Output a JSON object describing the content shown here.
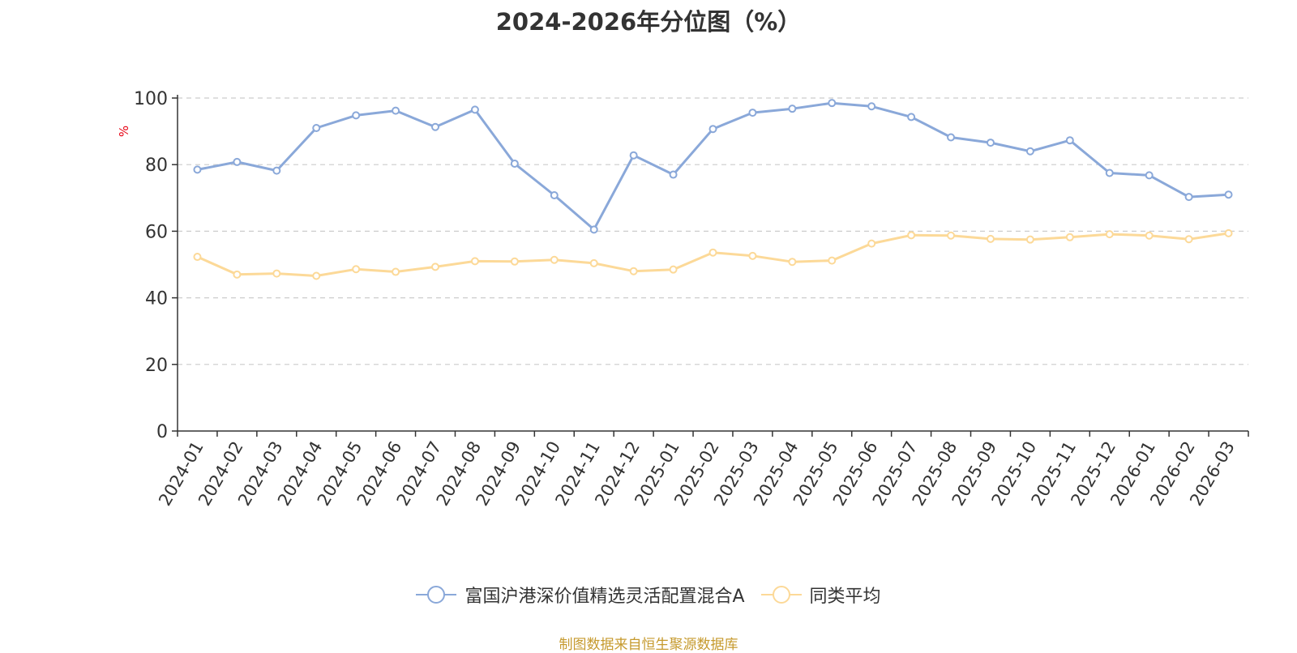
{
  "chart_data": {
    "type": "line",
    "title": "2024-2026年分位图（%）",
    "ylabel": "%",
    "xlabel": "",
    "ylim": [
      0,
      100
    ],
    "yticks": [
      0,
      20,
      40,
      60,
      80,
      100
    ],
    "grid": "horizontal dashed",
    "legend_position": "bottom",
    "categories": [
      "2024-01",
      "2024-02",
      "2024-03",
      "2024-04",
      "2024-05",
      "2024-06",
      "2024-07",
      "2024-08",
      "2024-09",
      "2024-10",
      "2024-11",
      "2024-12",
      "2025-01",
      "2025-02",
      "2025-03",
      "2025-04",
      "2025-05",
      "2025-06",
      "2025-07",
      "2025-08",
      "2025-09",
      "2025-10",
      "2025-11",
      "2025-12",
      "2026-01",
      "2026-02",
      "2026-03"
    ],
    "series": [
      {
        "name": "富国沪港深价值精选灵活配置混合A",
        "color": "#8aa8d9",
        "values": [
          78.5,
          80.8,
          78.2,
          91.0,
          94.8,
          96.2,
          91.3,
          96.5,
          80.3,
          70.8,
          60.5,
          82.8,
          77.0,
          90.7,
          95.6,
          96.8,
          98.5,
          97.5,
          94.3,
          88.2,
          86.6,
          84.0,
          87.3,
          77.5,
          76.8,
          70.3,
          71.0
        ]
      },
      {
        "name": "同类平均",
        "color": "#fcd998",
        "values": [
          52.3,
          47.0,
          47.3,
          46.6,
          48.6,
          47.8,
          49.3,
          51.0,
          50.9,
          51.4,
          50.4,
          48.0,
          48.5,
          53.6,
          52.6,
          50.8,
          51.2,
          56.3,
          58.8,
          58.7,
          57.7,
          57.5,
          58.2,
          59.1,
          58.7,
          57.6,
          59.4
        ]
      }
    ]
  },
  "footer": {
    "source": "制图数据来自恒生聚源数据库"
  }
}
